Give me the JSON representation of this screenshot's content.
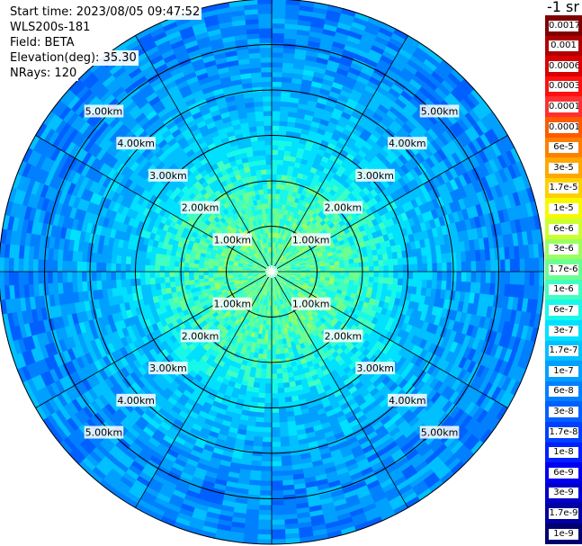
{
  "header": {
    "start_time": "Start time: 2023/08/05 09:47:52",
    "instrument": "WLS200s-181",
    "field": "Field: BETA",
    "elevation": "Elevation(deg): 35.30",
    "nrays": "NRays: 120"
  },
  "colorbar": {
    "unit": "-1 sr",
    "labels": [
      "0.0017",
      "0.001",
      "0.0006",
      "0.0003",
      "0.00017",
      "0.0001",
      "6e-5",
      "3e-5",
      "1.7e-5",
      "1e-5",
      "6e-6",
      "3e-6",
      "1.7e-6",
      "1e-6",
      "6e-7",
      "3e-7",
      "1.7e-7",
      "1e-7",
      "6e-8",
      "3e-8",
      "1.7e-8",
      "1e-8",
      "6e-9",
      "3e-9",
      "1.7e-9",
      "1e-9"
    ],
    "colors": [
      "#800000",
      "#b00000",
      "#d80000",
      "#ff1010",
      "#ff3030",
      "#ff5a00",
      "#ff7f00",
      "#ffa800",
      "#ffd000",
      "#f8f800",
      "#ccff30",
      "#9cff60",
      "#6cff90",
      "#40ffc0",
      "#18f8e8",
      "#00e0ff",
      "#00c0ff",
      "#00a0ff",
      "#0080ff",
      "#0060ff",
      "#0040ff",
      "#0020ff",
      "#0000f0",
      "#0000cc",
      "#0000a0",
      "#000070"
    ]
  },
  "chart_data": {
    "type": "heatmap",
    "projection": "polar (PPI)",
    "n_rays": 120,
    "max_range_km": 6.0,
    "range_rings_km": [
      1,
      2,
      3,
      4,
      5,
      6
    ],
    "radial_lines_deg": [
      0,
      30,
      60,
      90,
      120,
      150,
      180,
      210,
      240,
      270,
      300,
      330
    ],
    "ring_labels": [
      "1.00km",
      "2.00km",
      "3.00km",
      "4.00km",
      "5.00km"
    ],
    "value_profile": [
      {
        "range_km": 0.0,
        "beta": 1.7e-06
      },
      {
        "range_km": 1.0,
        "beta": 1.7e-06
      },
      {
        "range_km": 2.0,
        "beta": 1e-06
      },
      {
        "range_km": 2.5,
        "beta": 6e-07
      },
      {
        "range_km": 3.0,
        "beta": 3e-07
      },
      {
        "range_km": 4.0,
        "beta": 1.7e-07
      },
      {
        "range_km": 5.0,
        "beta": 1e-07
      },
      {
        "range_km": 6.0,
        "beta": 1e-07
      }
    ]
  }
}
